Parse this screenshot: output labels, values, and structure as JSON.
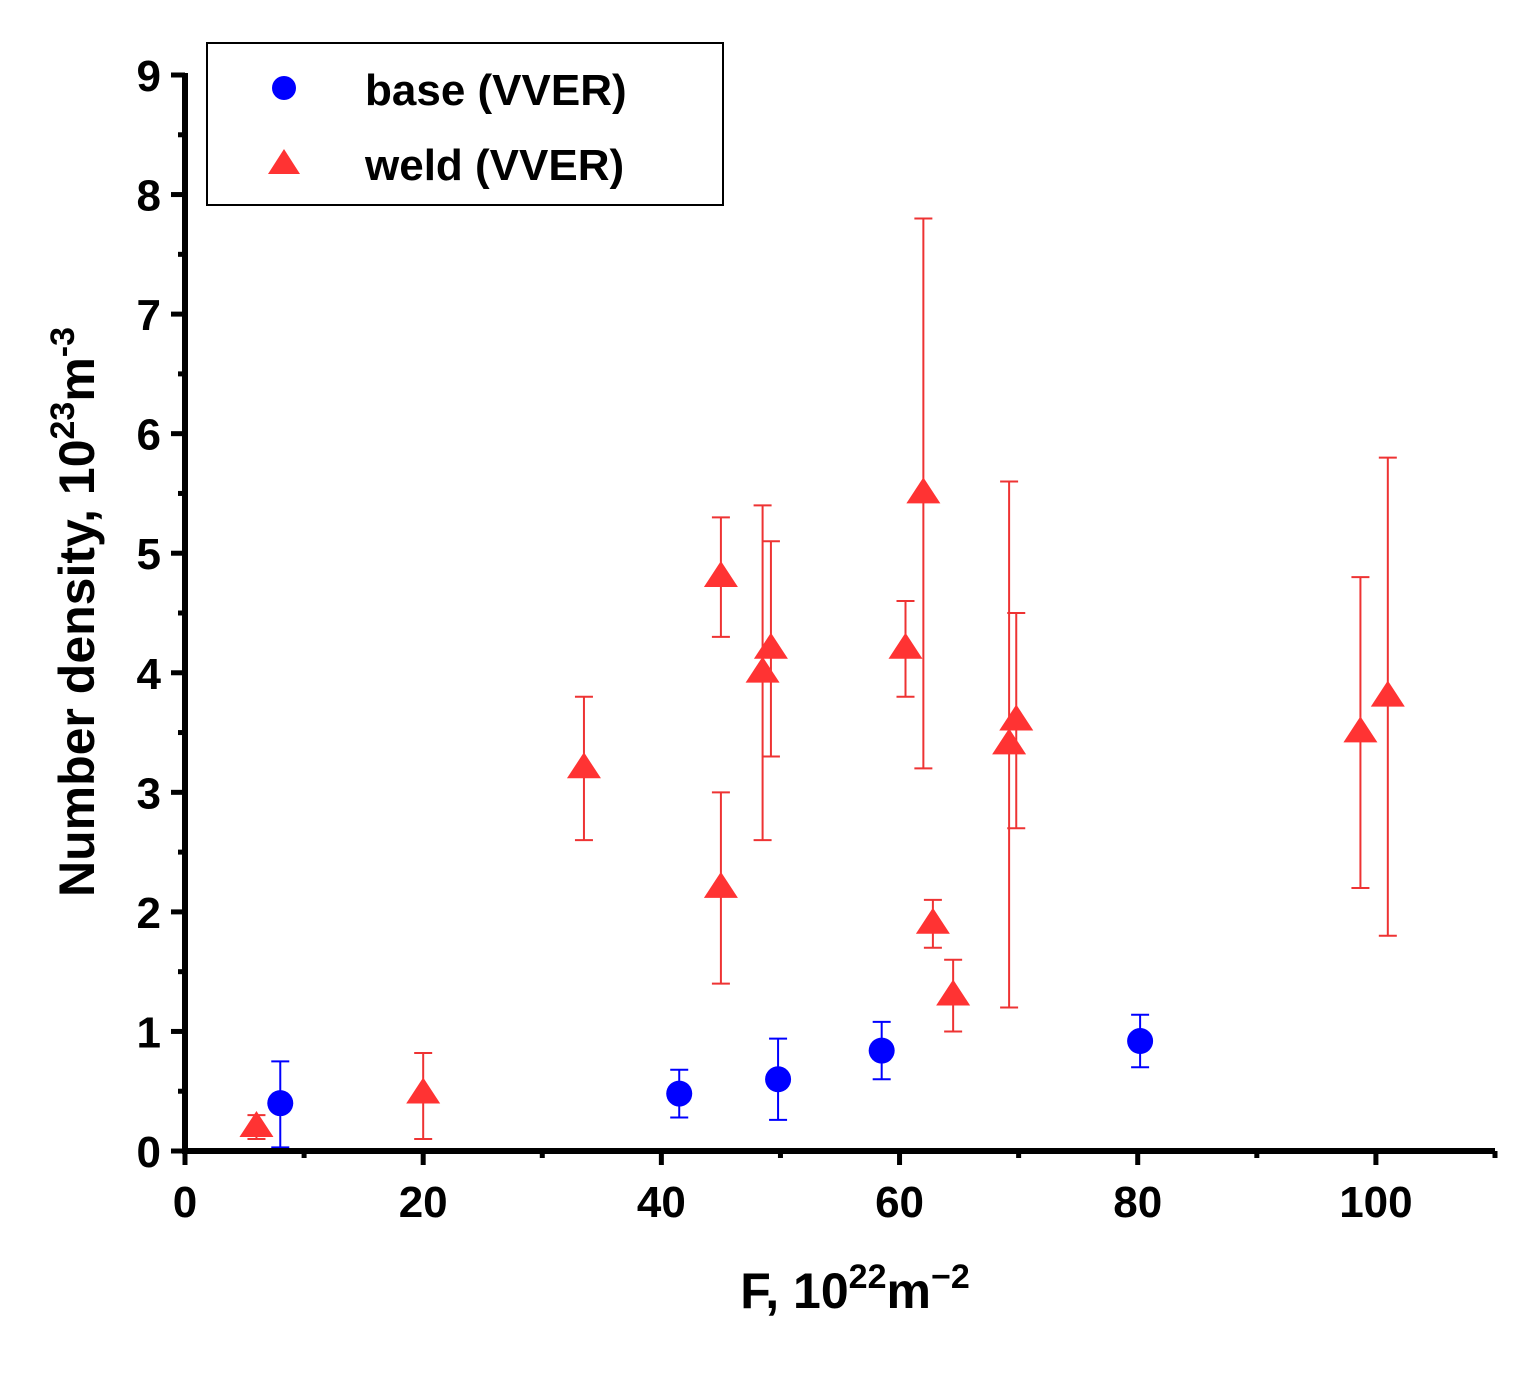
{
  "chart_data": {
    "type": "scatter",
    "xlabel": {
      "base": "F, 10",
      "sup": "22",
      "unit": "m",
      "unitsup": "−2"
    },
    "ylabel": {
      "base": "Number density, 10",
      "sup": "23",
      "unit": "m",
      "unitsup": "-3"
    },
    "xlim": [
      0,
      110
    ],
    "ylim": [
      0,
      9
    ],
    "x_ticks": [
      "0",
      "20",
      "40",
      "60",
      "80",
      "100"
    ],
    "y_ticks": [
      "0",
      "1",
      "2",
      "3",
      "4",
      "5",
      "6",
      "7",
      "8",
      "9"
    ],
    "legend_position": "top-left",
    "series": [
      {
        "name": "base (VVER)",
        "marker": "circle",
        "color": "#0000ff",
        "points": [
          {
            "x": 8.0,
            "y": 0.4,
            "err_low": 0.37,
            "err_high": 0.35
          },
          {
            "x": 41.5,
            "y": 0.48,
            "err_low": 0.2,
            "err_high": 0.2
          },
          {
            "x": 49.8,
            "y": 0.6,
            "err_low": 0.34,
            "err_high": 0.34
          },
          {
            "x": 58.5,
            "y": 0.84,
            "err_low": 0.24,
            "err_high": 0.24
          },
          {
            "x": 80.2,
            "y": 0.92,
            "err_low": 0.22,
            "err_high": 0.22
          }
        ]
      },
      {
        "name": "weld (VVER)",
        "marker": "triangle",
        "color": "#ff0000",
        "points": [
          {
            "x": 6.0,
            "y": 0.2,
            "err_low": 0.1,
            "err_high": 0.1
          },
          {
            "x": 20.0,
            "y": 0.48,
            "err_low": 0.38,
            "err_high": 0.34
          },
          {
            "x": 33.5,
            "y": 3.2,
            "err_low": 0.6,
            "err_high": 0.6
          },
          {
            "x": 45.0,
            "y": 4.8,
            "err_low": 0.5,
            "err_high": 0.5
          },
          {
            "x": 45.0,
            "y": 2.2,
            "err_low": 0.8,
            "err_high": 0.8
          },
          {
            "x": 48.5,
            "y": 4.0,
            "err_low": 1.4,
            "err_high": 1.4
          },
          {
            "x": 49.2,
            "y": 4.2,
            "err_low": 0.9,
            "err_high": 0.9
          },
          {
            "x": 60.5,
            "y": 4.2,
            "err_low": 0.4,
            "err_high": 0.4
          },
          {
            "x": 62.0,
            "y": 5.5,
            "err_low": 2.3,
            "err_high": 2.3
          },
          {
            "x": 62.8,
            "y": 1.9,
            "err_low": 0.2,
            "err_high": 0.2
          },
          {
            "x": 64.5,
            "y": 1.3,
            "err_low": 0.3,
            "err_high": 0.3
          },
          {
            "x": 69.2,
            "y": 3.4,
            "err_low": 2.2,
            "err_high": 2.2
          },
          {
            "x": 69.8,
            "y": 3.6,
            "err_low": 0.9,
            "err_high": 0.9
          },
          {
            "x": 98.7,
            "y": 3.5,
            "err_low": 1.3,
            "err_high": 1.3
          },
          {
            "x": 101.0,
            "y": 3.8,
            "err_low": 2.0,
            "err_high": 2.0
          }
        ]
      }
    ]
  }
}
